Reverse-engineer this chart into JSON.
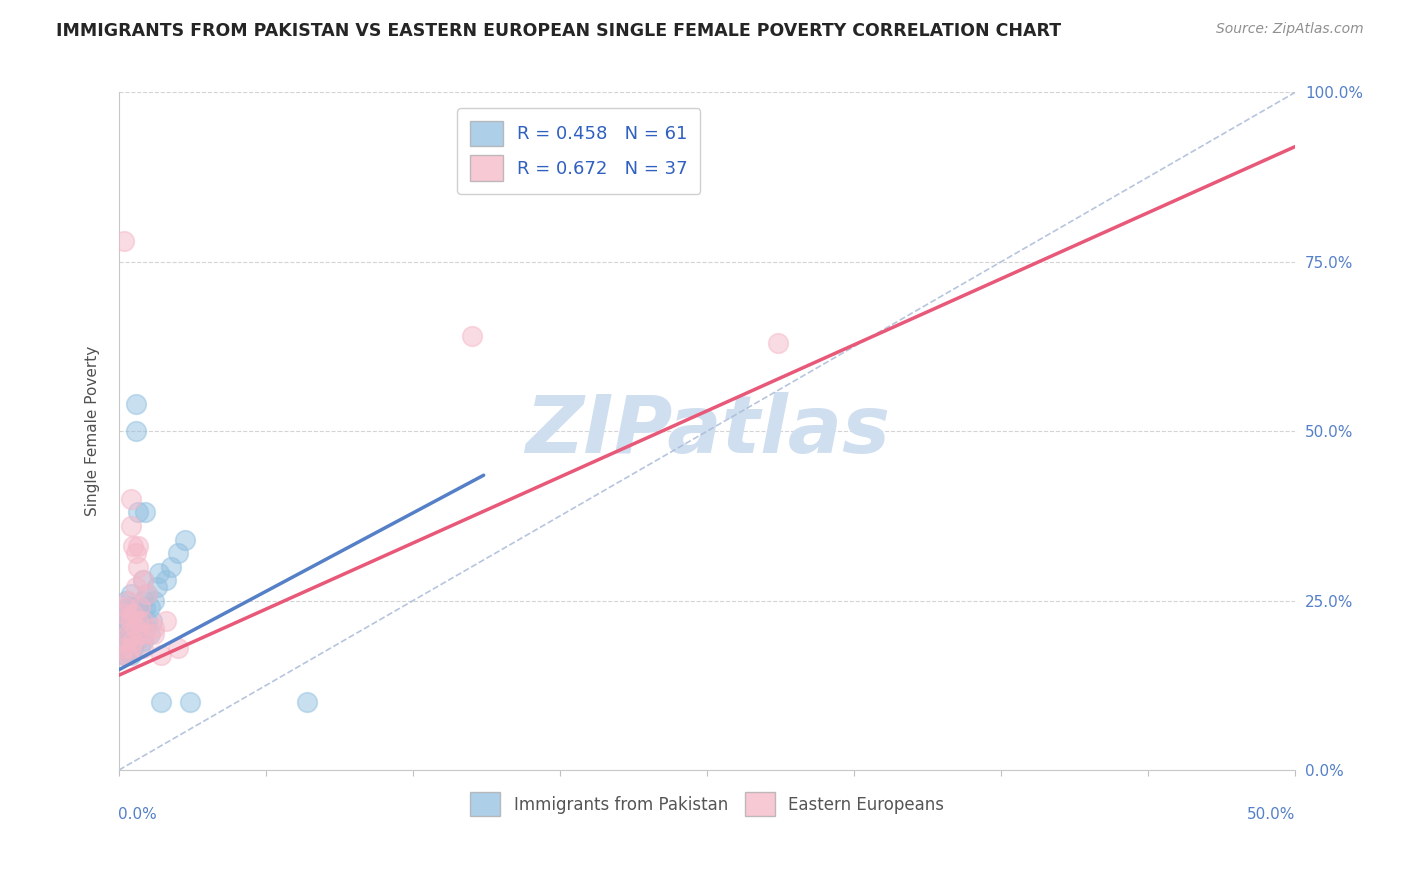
{
  "title": "IMMIGRANTS FROM PAKISTAN VS EASTERN EUROPEAN SINGLE FEMALE POVERTY CORRELATION CHART",
  "source": "Source: ZipAtlas.com",
  "legend_label1": "Immigrants from Pakistan",
  "legend_label2": "Eastern Europeans",
  "R1": 0.458,
  "N1": 61,
  "R2": 0.672,
  "N2": 37,
  "xlim": [
    0.0,
    0.5
  ],
  "ylim": [
    0.0,
    1.0
  ],
  "blue_color": "#92c0e0",
  "pink_color": "#f5b8c8",
  "blue_line_color": "#5580c8",
  "pink_line_color": "#e85878",
  "dashed_line_color": "#aabbd8",
  "watermark": "ZIPatlas",
  "watermark_color": "#d0dff0",
  "background_color": "#ffffff",
  "grid_color": "#d0d0d0",
  "title_color": "#252525",
  "blue_scatter": [
    [
      0.001,
      0.18
    ],
    [
      0.001,
      0.2
    ],
    [
      0.001,
      0.22
    ],
    [
      0.002,
      0.17
    ],
    [
      0.002,
      0.19
    ],
    [
      0.002,
      0.21
    ],
    [
      0.002,
      0.23
    ],
    [
      0.003,
      0.17
    ],
    [
      0.003,
      0.18
    ],
    [
      0.003,
      0.2
    ],
    [
      0.003,
      0.22
    ],
    [
      0.003,
      0.25
    ],
    [
      0.004,
      0.18
    ],
    [
      0.004,
      0.19
    ],
    [
      0.004,
      0.21
    ],
    [
      0.004,
      0.22
    ],
    [
      0.004,
      0.24
    ],
    [
      0.005,
      0.17
    ],
    [
      0.005,
      0.19
    ],
    [
      0.005,
      0.2
    ],
    [
      0.005,
      0.21
    ],
    [
      0.005,
      0.23
    ],
    [
      0.005,
      0.26
    ],
    [
      0.006,
      0.18
    ],
    [
      0.006,
      0.2
    ],
    [
      0.006,
      0.22
    ],
    [
      0.006,
      0.24
    ],
    [
      0.007,
      0.19
    ],
    [
      0.007,
      0.21
    ],
    [
      0.007,
      0.23
    ],
    [
      0.007,
      0.5
    ],
    [
      0.007,
      0.54
    ],
    [
      0.008,
      0.2
    ],
    [
      0.008,
      0.22
    ],
    [
      0.008,
      0.24
    ],
    [
      0.008,
      0.38
    ],
    [
      0.009,
      0.18
    ],
    [
      0.009,
      0.21
    ],
    [
      0.009,
      0.23
    ],
    [
      0.01,
      0.19
    ],
    [
      0.01,
      0.22
    ],
    [
      0.01,
      0.25
    ],
    [
      0.01,
      0.28
    ],
    [
      0.011,
      0.21
    ],
    [
      0.011,
      0.24
    ],
    [
      0.011,
      0.38
    ],
    [
      0.012,
      0.22
    ],
    [
      0.012,
      0.26
    ],
    [
      0.013,
      0.2
    ],
    [
      0.013,
      0.24
    ],
    [
      0.014,
      0.22
    ],
    [
      0.015,
      0.25
    ],
    [
      0.016,
      0.27
    ],
    [
      0.017,
      0.29
    ],
    [
      0.018,
      0.1
    ],
    [
      0.02,
      0.28
    ],
    [
      0.022,
      0.3
    ],
    [
      0.025,
      0.32
    ],
    [
      0.028,
      0.34
    ],
    [
      0.03,
      0.1
    ],
    [
      0.08,
      0.1
    ]
  ],
  "pink_scatter": [
    [
      0.001,
      0.17
    ],
    [
      0.001,
      0.22
    ],
    [
      0.002,
      0.18
    ],
    [
      0.002,
      0.23
    ],
    [
      0.002,
      0.78
    ],
    [
      0.003,
      0.19
    ],
    [
      0.003,
      0.24
    ],
    [
      0.004,
      0.17
    ],
    [
      0.004,
      0.2
    ],
    [
      0.004,
      0.25
    ],
    [
      0.005,
      0.18
    ],
    [
      0.005,
      0.22
    ],
    [
      0.005,
      0.36
    ],
    [
      0.005,
      0.4
    ],
    [
      0.006,
      0.19
    ],
    [
      0.006,
      0.23
    ],
    [
      0.006,
      0.33
    ],
    [
      0.007,
      0.21
    ],
    [
      0.007,
      0.27
    ],
    [
      0.007,
      0.32
    ],
    [
      0.008,
      0.22
    ],
    [
      0.008,
      0.3
    ],
    [
      0.008,
      0.33
    ],
    [
      0.009,
      0.2
    ],
    [
      0.009,
      0.24
    ],
    [
      0.01,
      0.18
    ],
    [
      0.01,
      0.22
    ],
    [
      0.01,
      0.28
    ],
    [
      0.012,
      0.2
    ],
    [
      0.012,
      0.26
    ],
    [
      0.015,
      0.21
    ],
    [
      0.015,
      0.2
    ],
    [
      0.018,
      0.17
    ],
    [
      0.02,
      0.22
    ],
    [
      0.025,
      0.18
    ],
    [
      0.15,
      0.64
    ],
    [
      0.28,
      0.63
    ]
  ],
  "blue_line_x": [
    0.0,
    0.155
  ],
  "blue_line_y": [
    0.148,
    0.435
  ],
  "pink_line_x": [
    0.0,
    0.5
  ],
  "pink_line_y": [
    0.14,
    0.92
  ]
}
